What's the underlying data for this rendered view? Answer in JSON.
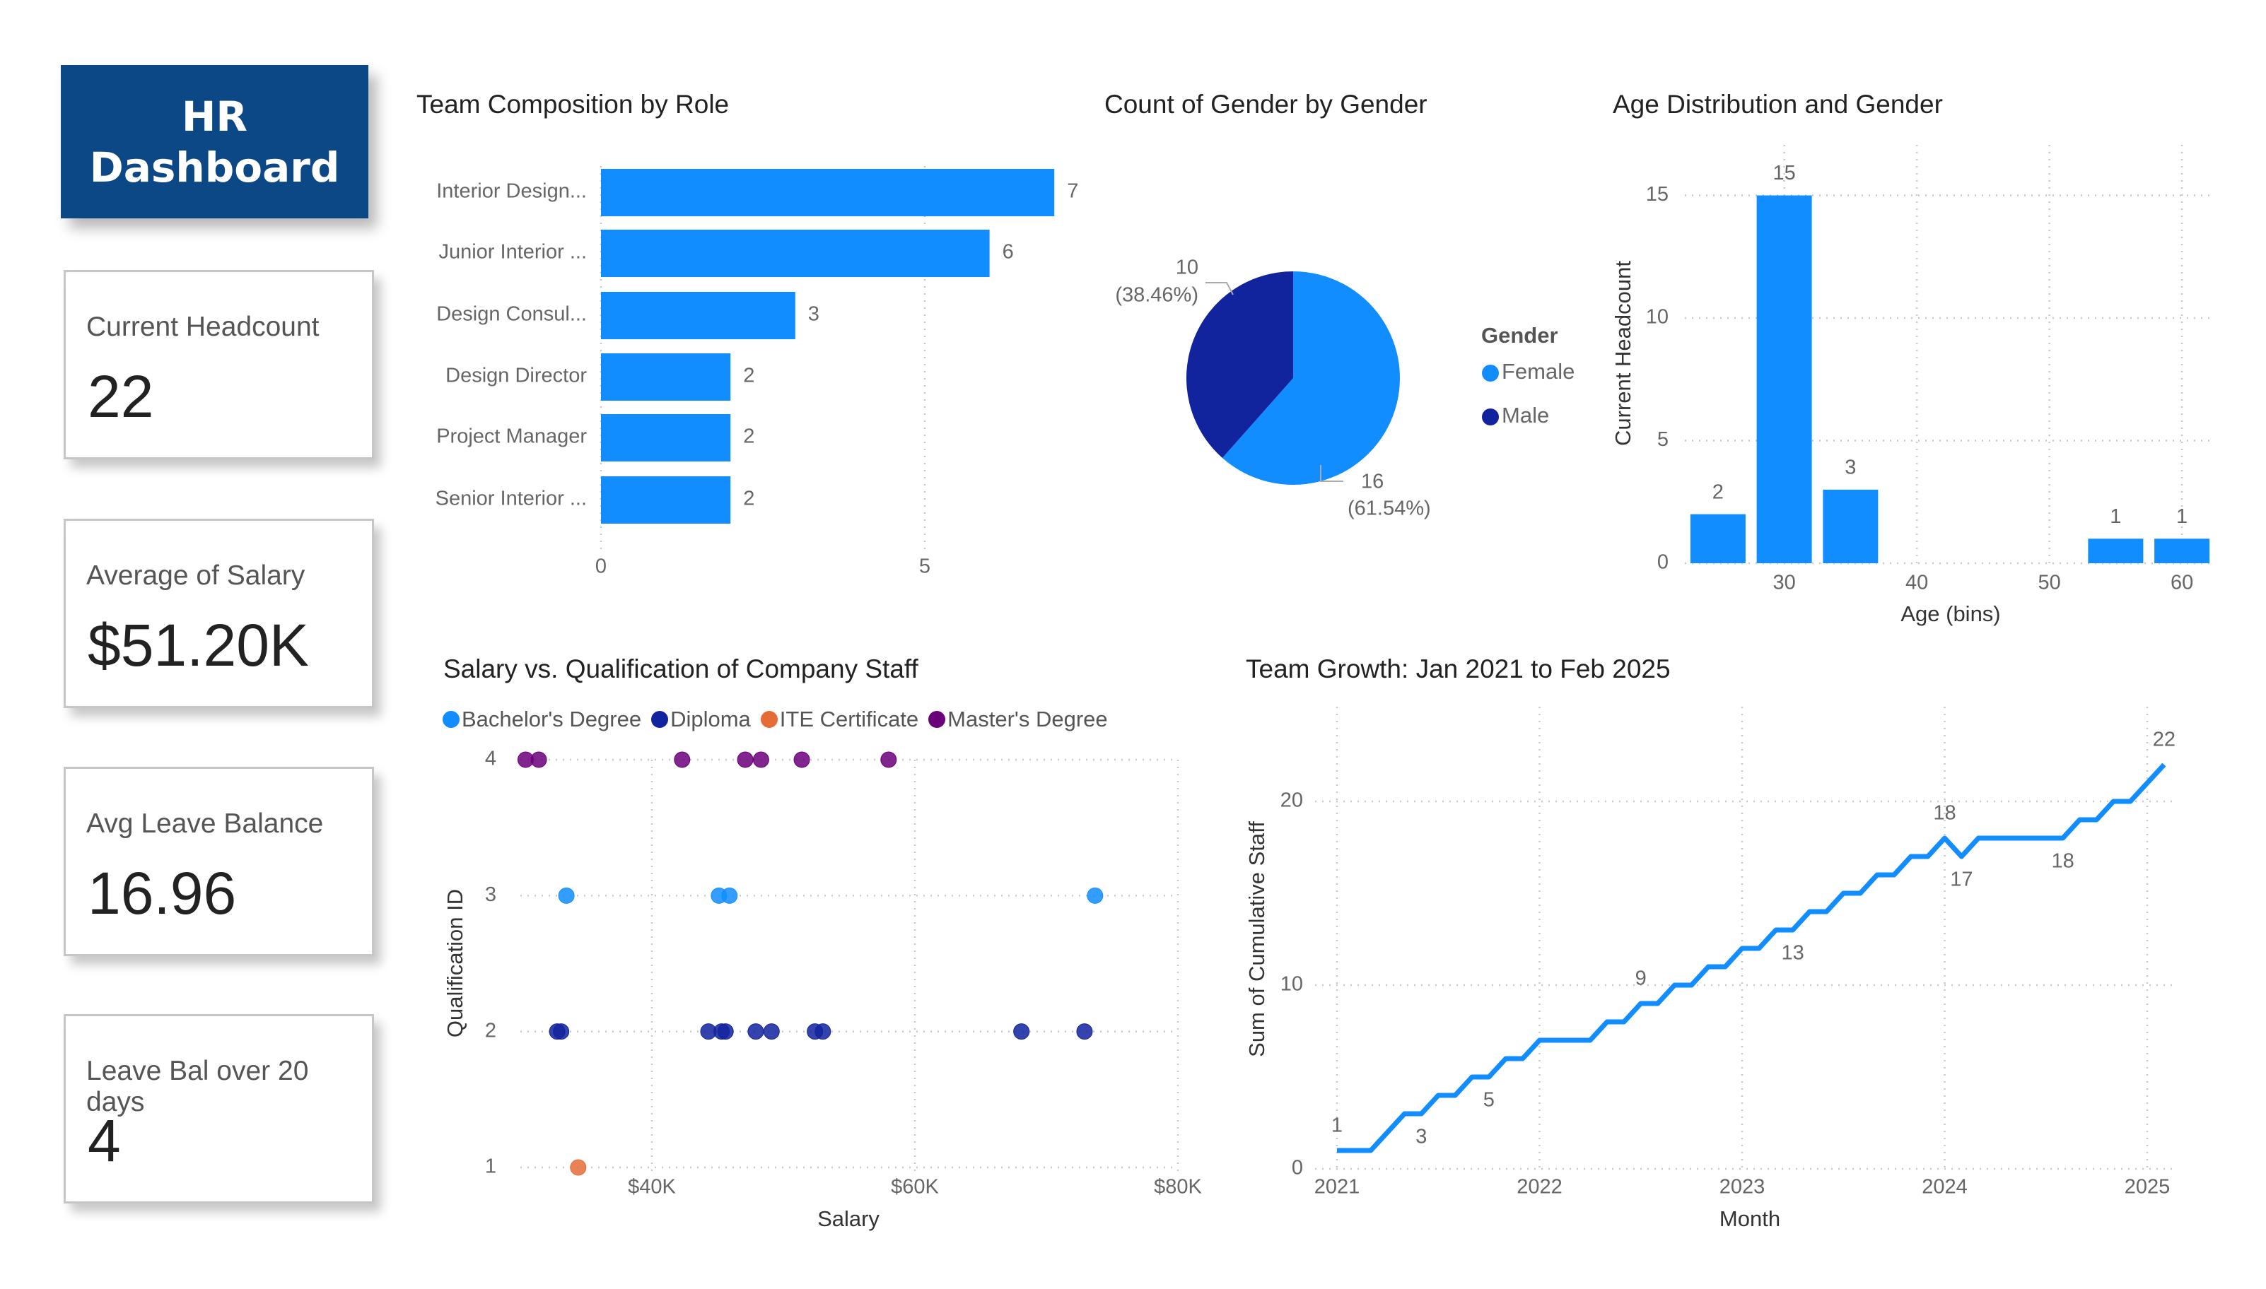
{
  "header": {
    "title_line1": "HR",
    "title_line2": "Dashboard",
    "bg_color": "#0C4885"
  },
  "kpis": [
    {
      "label": "Current Headcount",
      "value": "22"
    },
    {
      "label": "Average of Salary",
      "value": "$51.20K"
    },
    {
      "label": "Avg Leave Balance",
      "value": "16.96"
    },
    {
      "label": "Leave Bal over 20 days",
      "value": "4"
    }
  ],
  "colors": {
    "primary": "#118DFF",
    "dark_blue": "#12239E",
    "orange": "#E66C37",
    "purple": "#6B007B"
  },
  "chart_data": [
    {
      "id": "roles",
      "type": "bar",
      "orientation": "horizontal",
      "title": "Team Composition by Role",
      "categories": [
        "Interior Design...",
        "Junior Interior ...",
        "Design Consul...",
        "Design Director",
        "Project Manager",
        "Senior Interior ..."
      ],
      "values": [
        7,
        6,
        3,
        2,
        2,
        2
      ],
      "xticks": [
        "0",
        "5"
      ],
      "xlim": [
        0,
        7.5
      ],
      "grid": true
    },
    {
      "id": "gender",
      "type": "pie",
      "title": "Count of Gender by Gender",
      "legend_title": "Gender",
      "legend_position": "right",
      "slices": [
        {
          "name": "Female",
          "value": 16,
          "label": "16",
          "pct": "(61.54%)",
          "color": "#118DFF"
        },
        {
          "name": "Male",
          "value": 10,
          "label": "10",
          "pct": "(38.46%)",
          "color": "#12239E"
        }
      ]
    },
    {
      "id": "age",
      "type": "bar",
      "title": "Age Distribution and Gender",
      "xlabel": "Age (bins)",
      "ylabel": "Current Headcount",
      "x": [
        25,
        30,
        35,
        55,
        60
      ],
      "values": [
        2,
        15,
        3,
        1,
        1
      ],
      "xticks": [
        "30",
        "40",
        "50",
        "60"
      ],
      "yticks": [
        "0",
        "5",
        "10",
        "15"
      ],
      "xlim": [
        22.5,
        62.5
      ],
      "ylim": [
        0,
        17
      ],
      "grid": true
    },
    {
      "id": "salary",
      "type": "scatter",
      "title": "Salary vs. Qualification of Company Staff",
      "xlabel": "Salary",
      "ylabel": "Qualification ID",
      "xticks": [
        "$40K",
        "$60K",
        "$80K"
      ],
      "yticks": [
        "1",
        "2",
        "3",
        "4"
      ],
      "xlim": [
        30000,
        80000
      ],
      "ylim": [
        1,
        4
      ],
      "legend_position": "top",
      "grid": true,
      "series": [
        {
          "name": "Bachelor's Degree",
          "color": "#118DFF",
          "points": [
            [
              33500,
              3
            ],
            [
              45100,
              3
            ],
            [
              45900,
              3
            ],
            [
              73700,
              3
            ]
          ]
        },
        {
          "name": "Diploma",
          "color": "#12239E",
          "points": [
            [
              32800,
              2
            ],
            [
              33100,
              2
            ],
            [
              44300,
              2
            ],
            [
              45300,
              2
            ],
            [
              45600,
              2
            ],
            [
              47900,
              2
            ],
            [
              49100,
              2
            ],
            [
              52400,
              2
            ],
            [
              53000,
              2
            ],
            [
              68100,
              2
            ],
            [
              72900,
              2
            ]
          ]
        },
        {
          "name": "ITE Certificate",
          "color": "#E66C37",
          "points": [
            [
              34400,
              1
            ]
          ]
        },
        {
          "name": "Master's Degree",
          "color": "#6B007B",
          "points": [
            [
              30400,
              4
            ],
            [
              31400,
              4
            ],
            [
              42300,
              4
            ],
            [
              47100,
              4
            ],
            [
              48300,
              4
            ],
            [
              51400,
              4
            ],
            [
              58000,
              4
            ]
          ]
        }
      ]
    },
    {
      "id": "growth",
      "type": "line",
      "title": "Team Growth: Jan 2021 to Feb 2025",
      "xlabel": "Month",
      "ylabel": "Sum of Cumulative Staff",
      "xticks": [
        "2021",
        "2022",
        "2023",
        "2024",
        "2025"
      ],
      "yticks": [
        "0",
        "10",
        "20"
      ],
      "ylim": [
        0,
        25
      ],
      "grid": true,
      "start": "2021-01",
      "values": [
        1,
        1,
        1,
        2,
        3,
        3,
        4,
        4,
        5,
        5,
        6,
        6,
        7,
        7,
        7,
        7,
        8,
        8,
        9,
        9,
        10,
        10,
        11,
        11,
        12,
        12,
        13,
        13,
        14,
        14,
        15,
        15,
        16,
        16,
        17,
        17,
        18,
        17,
        18,
        18,
        18,
        18,
        18,
        18,
        19,
        19,
        20,
        20,
        21,
        22
      ],
      "data_labels": [
        {
          "month": "2021-01",
          "text": "1",
          "pos": "above"
        },
        {
          "month": "2021-06",
          "text": "3",
          "pos": "below"
        },
        {
          "month": "2021-10",
          "text": "5",
          "pos": "below"
        },
        {
          "month": "2022-07",
          "text": "9",
          "pos": "above"
        },
        {
          "month": "2023-04",
          "text": "13",
          "pos": "below"
        },
        {
          "month": "2024-01",
          "text": "18",
          "pos": "above"
        },
        {
          "month": "2024-02",
          "text": "17",
          "pos": "below"
        },
        {
          "month": "2024-08",
          "text": "18",
          "pos": "below"
        },
        {
          "month": "2025-02",
          "text": "22",
          "pos": "above"
        }
      ]
    }
  ]
}
